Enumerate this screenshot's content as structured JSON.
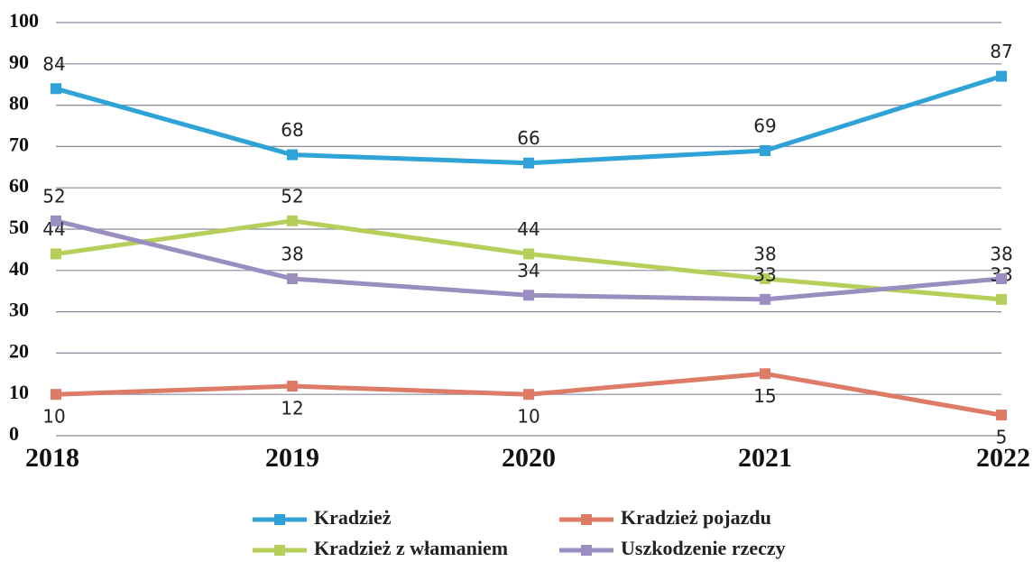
{
  "chart_data": {
    "type": "line",
    "categories": [
      "2018",
      "2019",
      "2020",
      "2021",
      "2022"
    ],
    "series": [
      {
        "name": "Kradzież",
        "color": "#2fa3d8",
        "values": [
          84,
          68,
          66,
          69,
          87
        ]
      },
      {
        "name": "Kradzież pojazdu",
        "color": "#dd7b66",
        "values": [
          10,
          12,
          10,
          15,
          5
        ]
      },
      {
        "name": "Kradzież z włamaniem",
        "color": "#b5cf5a",
        "values": [
          44,
          52,
          44,
          38,
          33
        ]
      },
      {
        "name": "Uszkodzenie rzeczy",
        "color": "#9a8dc0",
        "values": [
          52,
          38,
          34,
          33,
          38
        ]
      }
    ],
    "ylim": [
      0,
      100
    ],
    "yticks": [
      0,
      10,
      20,
      30,
      40,
      50,
      60,
      70,
      80,
      90,
      100
    ],
    "grid": true,
    "legend": "bottom"
  }
}
